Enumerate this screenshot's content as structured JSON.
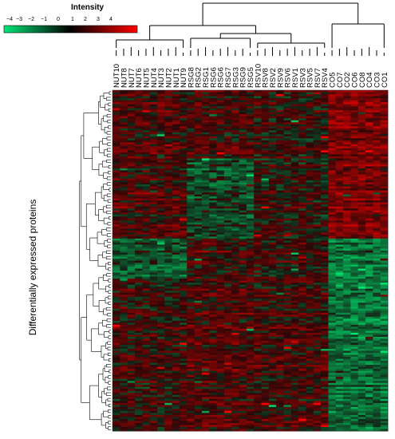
{
  "legend": {
    "title": "Intensity",
    "ticks": [
      "−4",
      "−3",
      "−2",
      "−1",
      "0",
      "1",
      "2",
      "3",
      "4"
    ],
    "colors": {
      "low": "#00e676",
      "mid": "#000000",
      "high": "#ff0000"
    }
  },
  "heatmap": {
    "row_title": "Differentially expressed proteins",
    "columns": [
      "NUT10",
      "NUT8",
      "NUT7",
      "NUT6",
      "NUT5",
      "NUT4",
      "NUT3",
      "NUT2",
      "NUT1",
      "NUT9",
      "RSG8",
      "RSG2",
      "RSG1",
      "RSG6",
      "RSG6",
      "RSG7",
      "RSG3",
      "RSG9",
      "RSG5",
      "RSV10",
      "RSV8",
      "RSV2",
      "RSV9",
      "RSV6",
      "RSV1",
      "RSV3",
      "RSV5",
      "RSV7",
      "RSV4",
      "CO5",
      "CO7",
      "CO2",
      "CO6",
      "CO8",
      "CO4",
      "CO3",
      "CO1"
    ],
    "groups": [
      "NUT",
      "RSG",
      "RSV",
      "CO"
    ]
  }
}
